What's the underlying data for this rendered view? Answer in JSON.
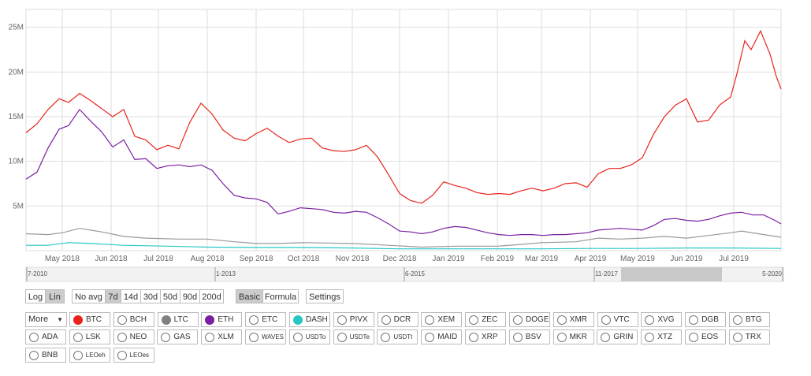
{
  "chart_data": {
    "type": "line",
    "y_ticks": [
      "5M",
      "10M",
      "15M",
      "20M",
      "25M"
    ],
    "y_tick_values": [
      5,
      10,
      15,
      20,
      25
    ],
    "ylim": [
      0,
      27
    ],
    "x_start": "2018-04-08",
    "x_end": "2019-07-31",
    "x_ticks": [
      {
        "label": "May 2018",
        "date": "2018-05-01"
      },
      {
        "label": "Jun 2018",
        "date": "2018-06-01"
      },
      {
        "label": "Jul 2018",
        "date": "2018-07-01"
      },
      {
        "label": "Aug 2018",
        "date": "2018-08-01"
      },
      {
        "label": "Sep 2018",
        "date": "2018-09-01"
      },
      {
        "label": "Oct 2018",
        "date": "2018-10-01"
      },
      {
        "label": "Nov 2018",
        "date": "2018-11-01"
      },
      {
        "label": "Dec 2018",
        "date": "2018-12-01"
      },
      {
        "label": "Jan 2019",
        "date": "2019-01-01"
      },
      {
        "label": "Feb 2019",
        "date": "2019-02-01"
      },
      {
        "label": "Mar 2019",
        "date": "2019-03-01"
      },
      {
        "label": "Apr 2019",
        "date": "2019-04-01"
      },
      {
        "label": "May 2019",
        "date": "2019-05-01"
      },
      {
        "label": "Jun 2019",
        "date": "2019-06-01"
      },
      {
        "label": "Jul 2019",
        "date": "2019-07-01"
      }
    ],
    "grid": true,
    "legend": "none",
    "series": [
      {
        "coin": "BTC",
        "color": "#e8231b",
        "unit": "M",
        "points": [
          [
            "2018-04-08",
            13.2
          ],
          [
            "2018-04-15",
            14.2
          ],
          [
            "2018-04-22",
            15.8
          ],
          [
            "2018-04-29",
            17.0
          ],
          [
            "2018-05-05",
            16.6
          ],
          [
            "2018-05-12",
            17.6
          ],
          [
            "2018-05-19",
            16.8
          ],
          [
            "2018-05-26",
            15.9
          ],
          [
            "2018-06-02",
            15.0
          ],
          [
            "2018-06-09",
            15.8
          ],
          [
            "2018-06-16",
            12.8
          ],
          [
            "2018-06-23",
            12.4
          ],
          [
            "2018-06-30",
            11.3
          ],
          [
            "2018-07-07",
            11.8
          ],
          [
            "2018-07-14",
            11.4
          ],
          [
            "2018-07-21",
            14.4
          ],
          [
            "2018-07-28",
            16.5
          ],
          [
            "2018-08-04",
            15.3
          ],
          [
            "2018-08-11",
            13.5
          ],
          [
            "2018-08-18",
            12.6
          ],
          [
            "2018-08-25",
            12.3
          ],
          [
            "2018-09-01",
            13.1
          ],
          [
            "2018-09-08",
            13.7
          ],
          [
            "2018-09-15",
            12.8
          ],
          [
            "2018-09-22",
            12.1
          ],
          [
            "2018-09-29",
            12.5
          ],
          [
            "2018-10-06",
            12.6
          ],
          [
            "2018-10-13",
            11.5
          ],
          [
            "2018-10-20",
            11.2
          ],
          [
            "2018-10-27",
            11.1
          ],
          [
            "2018-11-03",
            11.3
          ],
          [
            "2018-11-10",
            11.8
          ],
          [
            "2018-11-17",
            10.5
          ],
          [
            "2018-11-24",
            8.5
          ],
          [
            "2018-12-01",
            6.4
          ],
          [
            "2018-12-08",
            5.6
          ],
          [
            "2018-12-15",
            5.3
          ],
          [
            "2018-12-22",
            6.2
          ],
          [
            "2018-12-29",
            7.7
          ],
          [
            "2019-01-05",
            7.3
          ],
          [
            "2019-01-12",
            7.0
          ],
          [
            "2019-01-19",
            6.5
          ],
          [
            "2019-01-26",
            6.3
          ],
          [
            "2019-02-02",
            6.4
          ],
          [
            "2019-02-09",
            6.3
          ],
          [
            "2019-02-16",
            6.7
          ],
          [
            "2019-02-23",
            7.0
          ],
          [
            "2019-03-02",
            6.7
          ],
          [
            "2019-03-09",
            7.0
          ],
          [
            "2019-03-16",
            7.5
          ],
          [
            "2019-03-23",
            7.6
          ],
          [
            "2019-03-30",
            7.1
          ],
          [
            "2019-04-06",
            8.6
          ],
          [
            "2019-04-13",
            9.2
          ],
          [
            "2019-04-20",
            9.2
          ],
          [
            "2019-04-27",
            9.6
          ],
          [
            "2019-05-04",
            10.4
          ],
          [
            "2019-05-11",
            13.0
          ],
          [
            "2019-05-18",
            15.0
          ],
          [
            "2019-05-25",
            16.3
          ],
          [
            "2019-06-01",
            17.0
          ],
          [
            "2019-06-08",
            14.4
          ],
          [
            "2019-06-15",
            14.6
          ],
          [
            "2019-06-22",
            16.3
          ],
          [
            "2019-06-29",
            17.2
          ],
          [
            "2019-07-03",
            19.8
          ],
          [
            "2019-07-08",
            23.5
          ],
          [
            "2019-07-12",
            22.5
          ],
          [
            "2019-07-18",
            24.6
          ],
          [
            "2019-07-24",
            22.0
          ],
          [
            "2019-07-28",
            19.5
          ],
          [
            "2019-07-31",
            18.1
          ]
        ]
      },
      {
        "coin": "ETH",
        "color": "#7b1fa2",
        "unit": "M",
        "points": [
          [
            "2018-04-08",
            8.0
          ],
          [
            "2018-04-15",
            8.8
          ],
          [
            "2018-04-22",
            11.5
          ],
          [
            "2018-04-29",
            13.6
          ],
          [
            "2018-05-05",
            14.0
          ],
          [
            "2018-05-12",
            15.8
          ],
          [
            "2018-05-19",
            14.5
          ],
          [
            "2018-05-26",
            13.3
          ],
          [
            "2018-06-02",
            11.6
          ],
          [
            "2018-06-09",
            12.4
          ],
          [
            "2018-06-16",
            10.2
          ],
          [
            "2018-06-23",
            10.3
          ],
          [
            "2018-06-30",
            9.2
          ],
          [
            "2018-07-07",
            9.5
          ],
          [
            "2018-07-14",
            9.6
          ],
          [
            "2018-07-21",
            9.4
          ],
          [
            "2018-07-28",
            9.6
          ],
          [
            "2018-08-04",
            9.0
          ],
          [
            "2018-08-11",
            7.5
          ],
          [
            "2018-08-18",
            6.2
          ],
          [
            "2018-08-25",
            5.9
          ],
          [
            "2018-09-01",
            5.8
          ],
          [
            "2018-09-08",
            5.4
          ],
          [
            "2018-09-15",
            4.1
          ],
          [
            "2018-09-22",
            4.4
          ],
          [
            "2018-09-29",
            4.8
          ],
          [
            "2018-10-06",
            4.7
          ],
          [
            "2018-10-13",
            4.6
          ],
          [
            "2018-10-20",
            4.3
          ],
          [
            "2018-10-27",
            4.2
          ],
          [
            "2018-11-03",
            4.4
          ],
          [
            "2018-11-10",
            4.3
          ],
          [
            "2018-11-17",
            3.7
          ],
          [
            "2018-11-24",
            3.0
          ],
          [
            "2018-12-01",
            2.2
          ],
          [
            "2018-12-08",
            2.1
          ],
          [
            "2018-12-15",
            1.9
          ],
          [
            "2018-12-22",
            2.1
          ],
          [
            "2018-12-29",
            2.5
          ],
          [
            "2019-01-05",
            2.7
          ],
          [
            "2019-01-12",
            2.6
          ],
          [
            "2019-01-19",
            2.3
          ],
          [
            "2019-01-26",
            2.0
          ],
          [
            "2019-02-02",
            1.8
          ],
          [
            "2019-02-09",
            1.7
          ],
          [
            "2019-02-16",
            1.8
          ],
          [
            "2019-02-23",
            1.8
          ],
          [
            "2019-03-02",
            1.7
          ],
          [
            "2019-03-09",
            1.8
          ],
          [
            "2019-03-16",
            1.8
          ],
          [
            "2019-03-23",
            1.9
          ],
          [
            "2019-03-30",
            2.0
          ],
          [
            "2019-04-06",
            2.3
          ],
          [
            "2019-04-13",
            2.4
          ],
          [
            "2019-04-20",
            2.5
          ],
          [
            "2019-04-27",
            2.4
          ],
          [
            "2019-05-04",
            2.3
          ],
          [
            "2019-05-11",
            2.8
          ],
          [
            "2019-05-18",
            3.5
          ],
          [
            "2019-05-25",
            3.6
          ],
          [
            "2019-06-01",
            3.4
          ],
          [
            "2019-06-08",
            3.3
          ],
          [
            "2019-06-15",
            3.5
          ],
          [
            "2019-06-22",
            3.9
          ],
          [
            "2019-06-29",
            4.2
          ],
          [
            "2019-07-06",
            4.3
          ],
          [
            "2019-07-13",
            4.0
          ],
          [
            "2019-07-20",
            4.0
          ],
          [
            "2019-07-27",
            3.4
          ],
          [
            "2019-07-31",
            3.0
          ]
        ]
      },
      {
        "coin": "LTC",
        "color": "#999999",
        "unit": "M",
        "points": [
          [
            "2018-04-08",
            1.9
          ],
          [
            "2018-04-22",
            1.8
          ],
          [
            "2018-05-01",
            2.0
          ],
          [
            "2018-05-12",
            2.5
          ],
          [
            "2018-05-26",
            2.1
          ],
          [
            "2018-06-09",
            1.6
          ],
          [
            "2018-06-23",
            1.4
          ],
          [
            "2018-07-14",
            1.3
          ],
          [
            "2018-08-01",
            1.3
          ],
          [
            "2018-08-18",
            1.0
          ],
          [
            "2018-09-01",
            0.8
          ],
          [
            "2018-09-15",
            0.8
          ],
          [
            "2018-10-01",
            0.9
          ],
          [
            "2018-11-01",
            0.8
          ],
          [
            "2018-11-24",
            0.6
          ],
          [
            "2018-12-15",
            0.4
          ],
          [
            "2019-01-05",
            0.5
          ],
          [
            "2019-02-01",
            0.5
          ],
          [
            "2019-02-16",
            0.7
          ],
          [
            "2019-03-01",
            0.9
          ],
          [
            "2019-03-23",
            1.0
          ],
          [
            "2019-04-06",
            1.4
          ],
          [
            "2019-04-20",
            1.3
          ],
          [
            "2019-05-04",
            1.4
          ],
          [
            "2019-05-18",
            1.6
          ],
          [
            "2019-06-01",
            1.4
          ],
          [
            "2019-06-15",
            1.7
          ],
          [
            "2019-06-29",
            2.0
          ],
          [
            "2019-07-06",
            2.2
          ],
          [
            "2019-07-20",
            1.8
          ],
          [
            "2019-07-31",
            1.5
          ]
        ]
      },
      {
        "coin": "DASH",
        "color": "#26c6c6",
        "unit": "M",
        "points": [
          [
            "2018-04-08",
            0.6
          ],
          [
            "2018-04-22",
            0.6
          ],
          [
            "2018-05-05",
            0.9
          ],
          [
            "2018-05-19",
            0.8
          ],
          [
            "2018-06-09",
            0.6
          ],
          [
            "2018-07-07",
            0.5
          ],
          [
            "2018-08-01",
            0.4
          ],
          [
            "2018-09-01",
            0.35
          ],
          [
            "2018-10-01",
            0.35
          ],
          [
            "2018-11-01",
            0.3
          ],
          [
            "2018-12-01",
            0.2
          ],
          [
            "2019-01-01",
            0.2
          ],
          [
            "2019-02-01",
            0.2
          ],
          [
            "2019-03-01",
            0.2
          ],
          [
            "2019-04-01",
            0.25
          ],
          [
            "2019-05-01",
            0.25
          ],
          [
            "2019-06-01",
            0.3
          ],
          [
            "2019-07-01",
            0.3
          ],
          [
            "2019-07-31",
            0.25
          ]
        ]
      }
    ]
  },
  "range_labels": [
    "7-2010",
    "1-2013",
    "6-2015",
    "11-2017",
    "5-2020"
  ],
  "scale_buttons": [
    {
      "label": "Log",
      "active": false
    },
    {
      "label": "Lin",
      "active": true
    }
  ],
  "avg_buttons": [
    {
      "label": "No avg",
      "active": false
    },
    {
      "label": "7d",
      "active": true
    },
    {
      "label": "14d",
      "active": false
    },
    {
      "label": "30d",
      "active": false
    },
    {
      "label": "50d",
      "active": false
    },
    {
      "label": "90d",
      "active": false
    },
    {
      "label": "200d",
      "active": false
    }
  ],
  "mode_buttons": [
    {
      "label": "Basic",
      "active": true
    },
    {
      "label": "Formula",
      "active": false
    }
  ],
  "settings_label": "Settings",
  "more_label": "More",
  "coins": [
    [
      {
        "label": "BTC",
        "color": "#e8231b",
        "small": false
      },
      {
        "label": "BCH",
        "color": "",
        "small": false
      },
      {
        "label": "LTC",
        "color": "#808080",
        "small": false
      },
      {
        "label": "ETH",
        "color": "#7b1fa2",
        "small": false
      },
      {
        "label": "ETC",
        "color": "",
        "small": false
      },
      {
        "label": "DASH",
        "color": "#26c6c6",
        "small": false
      },
      {
        "label": "PIVX",
        "color": "",
        "small": false
      },
      {
        "label": "DCR",
        "color": "",
        "small": false
      },
      {
        "label": "XEM",
        "color": "",
        "small": false
      },
      {
        "label": "ZEC",
        "color": "",
        "small": false
      },
      {
        "label": "DOGE",
        "color": "",
        "small": false
      },
      {
        "label": "XMR",
        "color": "",
        "small": false
      },
      {
        "label": "VTC",
        "color": "",
        "small": false
      },
      {
        "label": "XVG",
        "color": "",
        "small": false
      },
      {
        "label": "DGB",
        "color": "",
        "small": false
      },
      {
        "label": "BTG",
        "color": "",
        "small": false
      }
    ],
    [
      {
        "label": "ADA",
        "color": "",
        "small": false
      },
      {
        "label": "LSK",
        "color": "",
        "small": false
      },
      {
        "label": "NEO",
        "color": "",
        "small": false
      },
      {
        "label": "GAS",
        "color": "",
        "small": false
      },
      {
        "label": "XLM",
        "color": "",
        "small": false
      },
      {
        "label": "WAVES",
        "color": "",
        "small": true
      },
      {
        "label": "USDTo",
        "color": "",
        "small": true
      },
      {
        "label": "USDTe",
        "color": "",
        "small": true
      },
      {
        "label": "USDTt",
        "color": "",
        "small": true
      },
      {
        "label": "MAID",
        "color": "",
        "small": false
      },
      {
        "label": "XRP",
        "color": "",
        "small": false
      },
      {
        "label": "BSV",
        "color": "",
        "small": false
      },
      {
        "label": "MKR",
        "color": "",
        "small": false
      },
      {
        "label": "GRIN",
        "color": "",
        "small": false
      },
      {
        "label": "XTZ",
        "color": "",
        "small": false
      },
      {
        "label": "EOS",
        "color": "",
        "small": false
      },
      {
        "label": "TRX",
        "color": "",
        "small": false
      }
    ],
    [
      {
        "label": "BNB",
        "color": "",
        "small": false
      },
      {
        "label": "LEOeh",
        "color": "",
        "small": true
      },
      {
        "label": "LEOes",
        "color": "",
        "small": true
      }
    ]
  ]
}
